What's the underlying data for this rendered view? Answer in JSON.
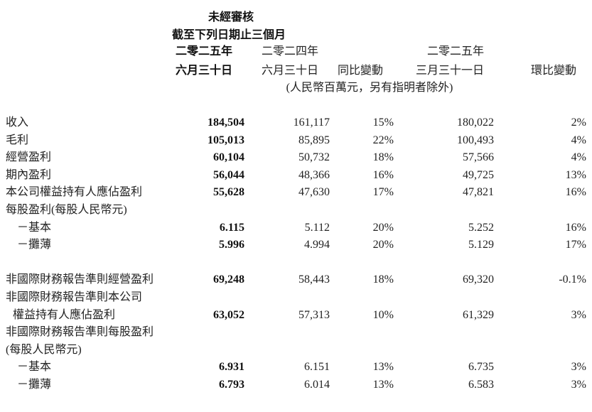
{
  "header": {
    "audit_status": "未經審核",
    "period": "截至下列日期止三個月",
    "unit_note": "(人民幣百萬元，另有指明者除外)",
    "columns": [
      {
        "line1": "二零二五年",
        "line2": "六月三十日"
      },
      {
        "line1": "二零二四年",
        "line2": "六月三十日"
      },
      {
        "line1": "",
        "line2": "同比變動"
      },
      {
        "line1": "二零二五年",
        "line2": "三月三十一日"
      },
      {
        "line1": "",
        "line2": "環比變動"
      }
    ]
  },
  "rows": [
    {
      "label": "收入",
      "values": [
        "184,504",
        "161,117",
        "15%",
        "180,022",
        "2%"
      ]
    },
    {
      "label": "毛利",
      "values": [
        "105,013",
        "85,895",
        "22%",
        "100,493",
        "4%"
      ]
    },
    {
      "label": "經營盈利",
      "values": [
        "60,104",
        "50,732",
        "18%",
        "57,566",
        "4%"
      ]
    },
    {
      "label": "期內盈利",
      "values": [
        "56,044",
        "48,366",
        "16%",
        "49,725",
        "13%"
      ]
    },
    {
      "label": "本公司權益持有人應佔盈利",
      "values": [
        "55,628",
        "47,630",
        "17%",
        "47,821",
        "16%"
      ]
    },
    {
      "label": "每股盈利(每股人民幣元)",
      "values": [
        "",
        "",
        "",
        "",
        ""
      ]
    },
    {
      "label": "－基本",
      "values": [
        "6.115",
        "5.112",
        "20%",
        "5.252",
        "16%"
      ]
    },
    {
      "label": "－攤薄",
      "values": [
        "5.996",
        "4.994",
        "20%",
        "5.129",
        "17%"
      ]
    },
    {
      "label": "非國際財務報告準則經營盈利",
      "values": [
        "69,248",
        "58,443",
        "18%",
        "69,320",
        "-0.1%"
      ]
    },
    {
      "label": "非國際財務報告準則本公司",
      "values": [
        "",
        "",
        "",
        "",
        ""
      ]
    },
    {
      "label": "權益持有人應佔盈利",
      "values": [
        "63,052",
        "57,313",
        "10%",
        "61,329",
        "3%"
      ]
    },
    {
      "label": "非國際財務報告準則每股盈利",
      "values": [
        "",
        "",
        "",
        "",
        ""
      ]
    },
    {
      "label": "(每股人民幣元)",
      "values": [
        "",
        "",
        "",
        "",
        ""
      ]
    },
    {
      "label": "－基本",
      "values": [
        "6.931",
        "6.151",
        "13%",
        "6.735",
        "3%"
      ]
    },
    {
      "label": "－攤薄",
      "values": [
        "6.793",
        "6.014",
        "13%",
        "6.583",
        "3%"
      ]
    }
  ]
}
